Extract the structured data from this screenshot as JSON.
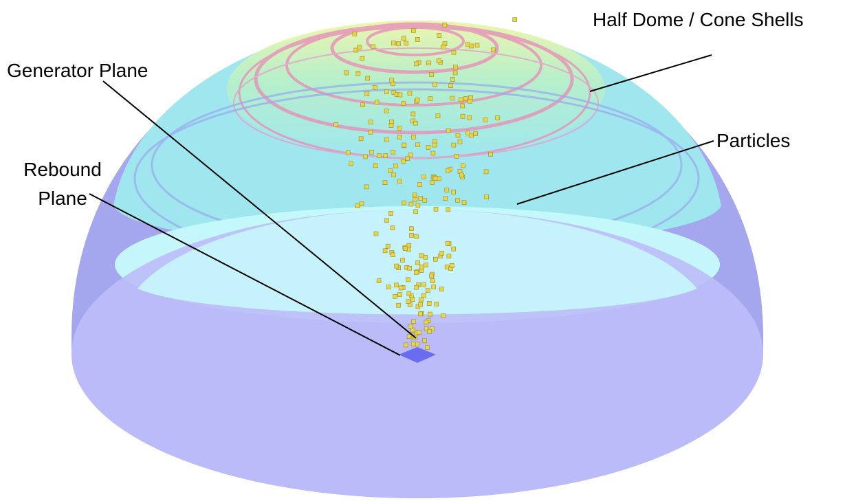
{
  "labels": {
    "half_dome": "Half Dome / Cone Shells",
    "generator_plane": "Generator Plane",
    "particles": "Particles",
    "rebound_plane": [
      "Rebound",
      "Plane"
    ]
  }
}
